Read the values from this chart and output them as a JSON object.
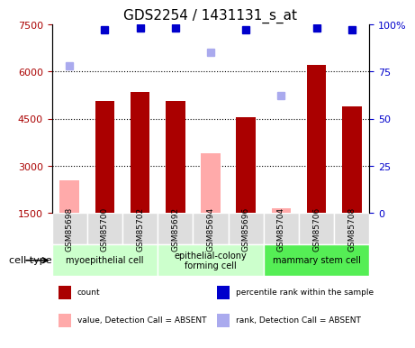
{
  "title": "GDS2254 / 1431131_s_at",
  "samples": [
    "GSM85698",
    "GSM85700",
    "GSM85702",
    "GSM85692",
    "GSM85694",
    "GSM85696",
    "GSM85704",
    "GSM85706",
    "GSM85708"
  ],
  "bar_values": [
    null,
    5050,
    5350,
    5050,
    null,
    4550,
    null,
    6200,
    4900
  ],
  "bar_absent_values": [
    2550,
    null,
    null,
    null,
    3400,
    null,
    1650,
    null,
    null
  ],
  "rank_values": [
    null,
    97,
    98,
    98,
    null,
    97,
    null,
    98,
    97
  ],
  "rank_absent_values": [
    78,
    null,
    null,
    null,
    85,
    null,
    62,
    null,
    null
  ],
  "bar_color": "#aa0000",
  "bar_absent_color": "#ffaaaa",
  "rank_color": "#0000cc",
  "rank_absent_color": "#aaaaee",
  "ylim_left": [
    1500,
    7500
  ],
  "ylim_right": [
    0,
    100
  ],
  "yticks_left": [
    1500,
    3000,
    4500,
    6000,
    7500
  ],
  "yticks_right": [
    0,
    25,
    50,
    75,
    100
  ],
  "cell_groups": [
    {
      "label": "myoepithelial cell",
      "start": 0,
      "end": 3,
      "color": "#ccffcc"
    },
    {
      "label": "epithelial-colony\nforming cell",
      "start": 3,
      "end": 6,
      "color": "#ccffcc"
    },
    {
      "label": "mammary stem cell",
      "start": 6,
      "end": 9,
      "color": "#55ee55"
    }
  ],
  "cell_type_label": "cell type",
  "legend_items": [
    {
      "label": "count",
      "color": "#aa0000"
    },
    {
      "label": "percentile rank within the sample",
      "color": "#0000cc"
    },
    {
      "label": "value, Detection Call = ABSENT",
      "color": "#ffaaaa"
    },
    {
      "label": "rank, Detection Call = ABSENT",
      "color": "#aaaaee"
    }
  ]
}
